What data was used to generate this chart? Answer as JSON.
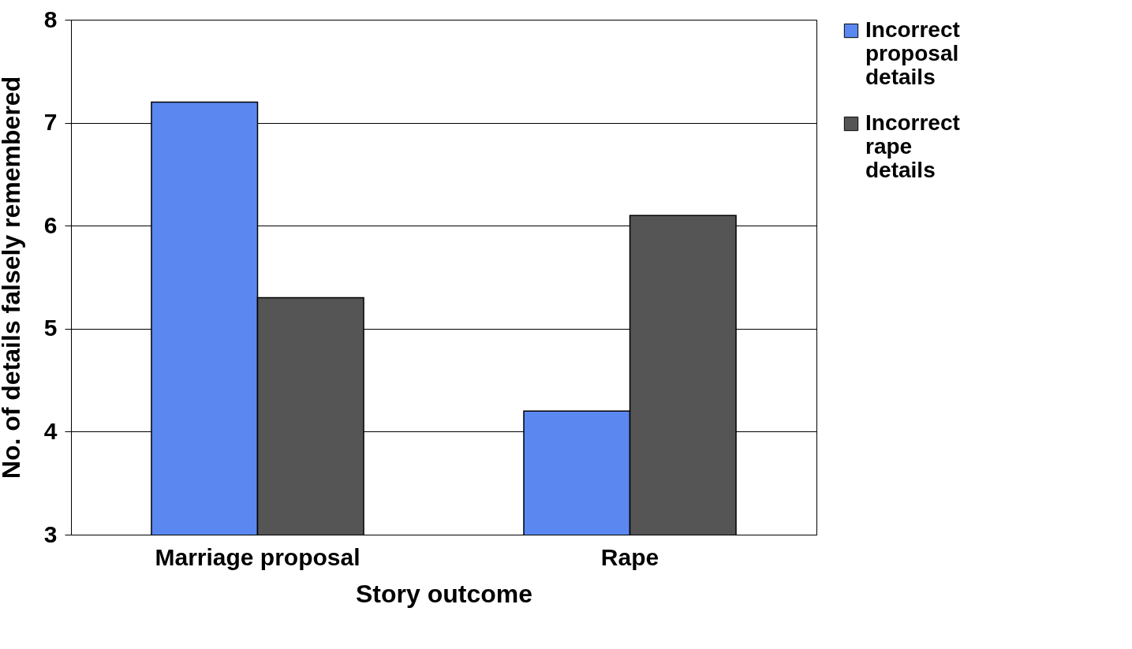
{
  "chart_data": {
    "type": "bar",
    "xlabel": "Story outcome",
    "ylabel": "No. of details falsely remembered",
    "categories": [
      "Marriage proposal",
      "Rape"
    ],
    "series": [
      {
        "name": "Incorrect proposal details",
        "color": "#5b87f0",
        "values": [
          7.2,
          4.2
        ]
      },
      {
        "name": "Incorrect rape details",
        "color": "#555555",
        "values": [
          5.3,
          6.1
        ]
      }
    ],
    "ylim": [
      3,
      8
    ],
    "yticks": [
      3,
      4,
      5,
      6,
      7,
      8
    ],
    "grid": "y",
    "legend": "right"
  }
}
